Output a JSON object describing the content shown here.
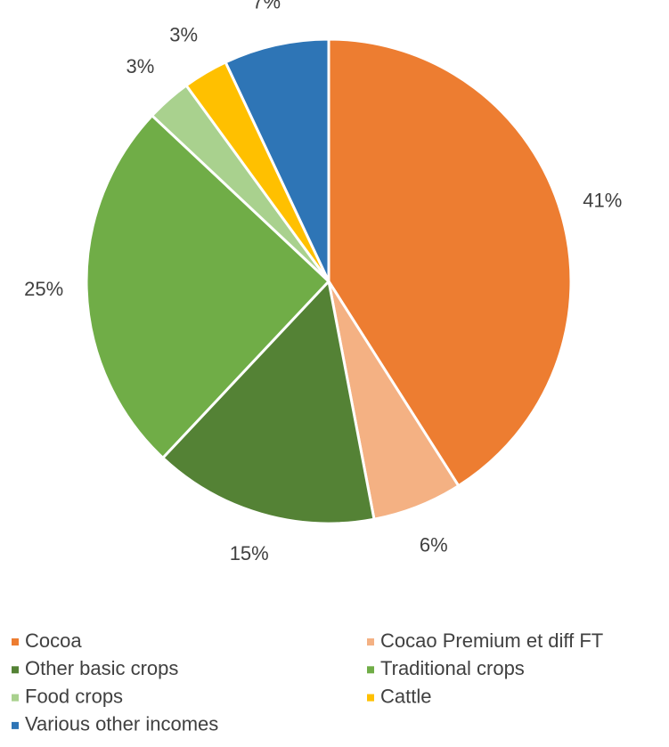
{
  "chart_data": {
    "type": "pie",
    "series": [
      {
        "name": "Cocoa",
        "color": "#ED7D31",
        "values": [
          41
        ],
        "value_labels": [
          "41%"
        ]
      },
      {
        "name": "Cocao Premium et diff FT",
        "color": "#F4B183",
        "values": [
          6
        ],
        "value_labels": [
          "6%"
        ]
      },
      {
        "name": "Other basic crops",
        "color": "#548235",
        "values": [
          15
        ],
        "value_labels": [
          "15%"
        ]
      },
      {
        "name": "Traditional crops",
        "color": "#70AD47",
        "values": [
          25
        ],
        "value_labels": [
          "25%"
        ]
      },
      {
        "name": "Food crops",
        "color": "#A9D18E",
        "values": [
          3
        ],
        "value_labels": [
          "3%"
        ]
      },
      {
        "name": "Cattle",
        "color": "#FFC000",
        "values": [
          3
        ],
        "value_labels": [
          "3%"
        ]
      },
      {
        "name": "Various other incomes",
        "color": "#2E75B6",
        "values": [
          7
        ],
        "value_labels": [
          "7%"
        ]
      }
    ],
    "legend": "bottom"
  }
}
